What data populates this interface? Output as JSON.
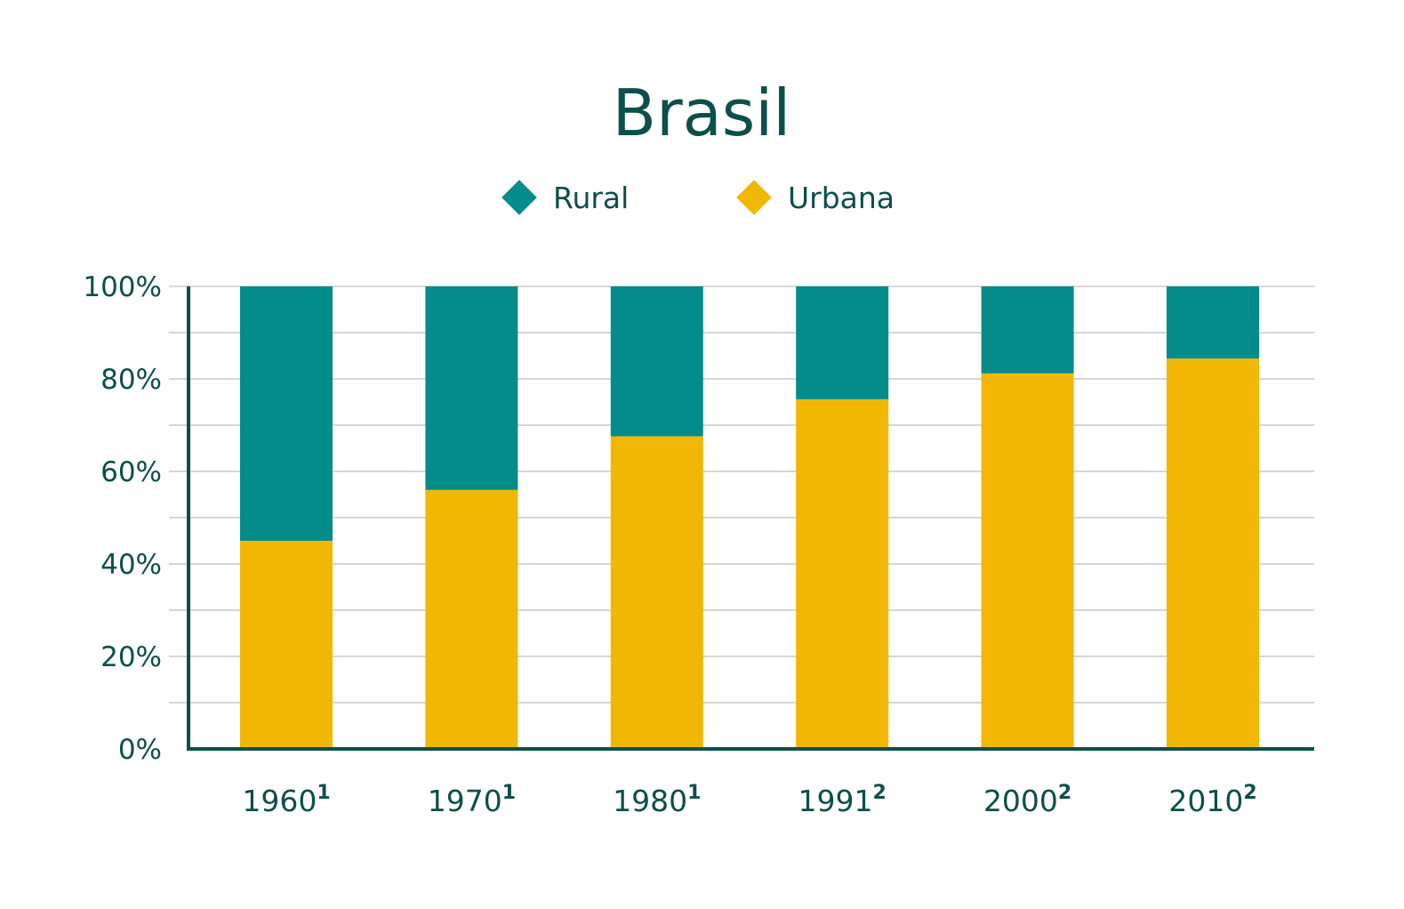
{
  "chart_data": {
    "type": "bar",
    "stacked": true,
    "title": "Brasil",
    "categories": [
      "1960",
      "1970",
      "1980",
      "1991",
      "2000",
      "2010"
    ],
    "category_footnotes": [
      "1",
      "1",
      "1",
      "2",
      "2",
      "2"
    ],
    "series": [
      {
        "name": "Urbana",
        "color": "#f2b705",
        "values": [
          45,
          56,
          67.6,
          75.6,
          81.2,
          84.4
        ]
      },
      {
        "name": "Rural",
        "color": "#038c89",
        "values": [
          55,
          44,
          32.4,
          24.4,
          18.8,
          15.6
        ]
      }
    ],
    "legend": [
      {
        "label": "Rural",
        "color": "#038c89"
      },
      {
        "label": "Urbana",
        "color": "#f2b705"
      }
    ],
    "legend_position": "top-center",
    "xlabel": "",
    "ylabel": "",
    "ylim": [
      0,
      100
    ],
    "yticks": [
      0,
      20,
      40,
      60,
      80,
      100
    ],
    "ytick_labels": [
      "0%",
      "20%",
      "40%",
      "60%",
      "80%",
      "100%"
    ],
    "grid": true,
    "axis_color": "#0d4f4a",
    "grid_color": "#c8c8c8"
  }
}
